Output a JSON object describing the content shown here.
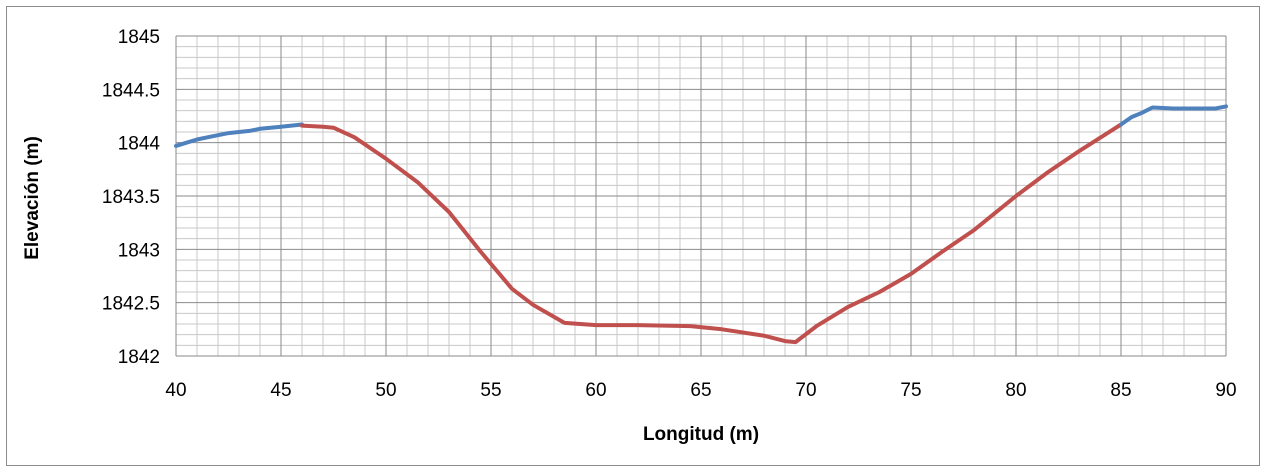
{
  "chart_data": {
    "type": "line",
    "title": "",
    "xlabel": "Longitud (m)",
    "ylabel": "Elevación (m)",
    "xlim": [
      40,
      90
    ],
    "ylim": [
      1842,
      1845
    ],
    "x_ticks": [
      "40",
      "45",
      "50",
      "55",
      "60",
      "65",
      "70",
      "75",
      "80",
      "85",
      "90"
    ],
    "y_ticks": [
      "1842",
      "1842.5",
      "1843",
      "1843.5",
      "1844",
      "1844.5",
      "1845"
    ],
    "grid": "major and minor",
    "legend": "none",
    "series": [
      {
        "color": "#4f81bd",
        "x": [
          40.0,
          40.5,
          41.0,
          41.5,
          42.0,
          42.5,
          43.0,
          43.5,
          44.0,
          44.5,
          45.0,
          45.5,
          46.0
        ],
        "y": [
          1843.97,
          1844.0,
          1844.03,
          1844.05,
          1844.07,
          1844.09,
          1844.1,
          1844.11,
          1844.13,
          1844.14,
          1844.15,
          1844.16,
          1844.17
        ]
      },
      {
        "color": "#c0504d",
        "x": [
          46.0,
          47.0,
          47.5,
          48.5,
          50.0,
          51.5,
          53.0,
          54.5,
          56.0,
          57.0,
          58.5,
          60.0,
          62.0,
          64.5,
          66.0,
          68.0,
          69.0,
          69.5,
          70.5,
          72.0,
          73.5,
          75.0,
          76.5,
          78.0,
          80.0,
          81.5,
          83.0,
          85.0
        ],
        "y": [
          1844.16,
          1844.15,
          1844.14,
          1844.05,
          1843.85,
          1843.63,
          1843.35,
          1842.98,
          1842.63,
          1842.48,
          1842.31,
          1842.29,
          1842.29,
          1842.28,
          1842.25,
          1842.19,
          1842.14,
          1842.13,
          1842.28,
          1842.46,
          1842.6,
          1842.77,
          1842.98,
          1843.18,
          1843.5,
          1843.72,
          1843.92,
          1844.17
        ]
      },
      {
        "color": "#4f81bd",
        "x": [
          85.0,
          85.5,
          86.0,
          86.5,
          87.5,
          88.5,
          89.5,
          90.0
        ],
        "y": [
          1844.17,
          1844.24,
          1844.28,
          1844.33,
          1844.32,
          1844.32,
          1844.32,
          1844.34
        ]
      }
    ]
  }
}
